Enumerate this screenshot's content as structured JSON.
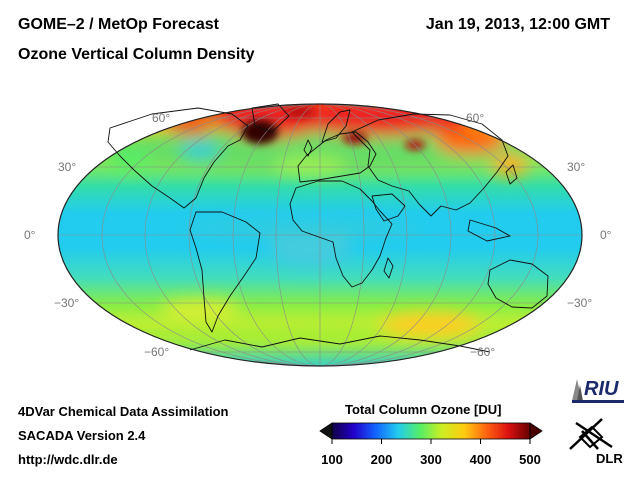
{
  "header": {
    "title_left": "GOME–2 / MetOp Forecast",
    "title_right": "Jan 19, 2013, 12:00 GMT",
    "subtitle": "Ozone Vertical Column Density"
  },
  "map": {
    "projection": "Mollweide",
    "latitude_labels": {
      "n60": "60°",
      "n30": "30°",
      "eq": "0°",
      "s30": "−30°",
      "s60": "−60°"
    }
  },
  "legend": {
    "title": "Total Column Ozone [DU]",
    "ticks": [
      "100",
      "200",
      "300",
      "400",
      "500"
    ],
    "range": [
      100,
      500
    ],
    "colors": [
      "#110044",
      "#2200cc",
      "#1166ff",
      "#22ccee",
      "#55ee66",
      "#ccee22",
      "#ffcc11",
      "#ff6611",
      "#dd1111",
      "#660000"
    ]
  },
  "footer": {
    "line1": "4DVar Chemical Data Assimilation",
    "line2": "SACADA Version 2.4",
    "line3": "http://wdc.dlr.de"
  },
  "logos": {
    "riu": "RIU",
    "dlr": "DLR"
  },
  "icons": [
    "riu-logo-icon",
    "dlr-logo-icon"
  ]
}
